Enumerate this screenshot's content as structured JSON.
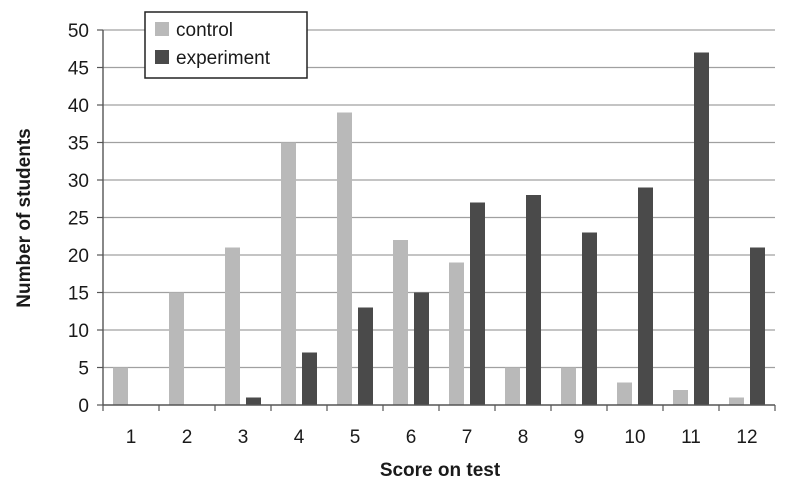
{
  "chart_data": {
    "type": "bar",
    "categories": [
      "1",
      "2",
      "3",
      "4",
      "5",
      "6",
      "7",
      "8",
      "9",
      "10",
      "11",
      "12"
    ],
    "series": [
      {
        "name": "control",
        "color": "#b9b9b9",
        "values": [
          5,
          15,
          21,
          35,
          39,
          22,
          19,
          5,
          5,
          3,
          2,
          1
        ]
      },
      {
        "name": "experiment",
        "color": "#4a4a4a",
        "values": [
          0,
          0,
          1,
          7,
          13,
          15,
          27,
          28,
          23,
          29,
          47,
          21
        ]
      }
    ],
    "xlabel": "Score on test",
    "ylabel": "Number of students",
    "ylim": [
      0,
      50
    ],
    "yticks": [
      0,
      5,
      10,
      15,
      20,
      25,
      30,
      35,
      40,
      45,
      50
    ],
    "grid": true,
    "legend_position": "top-left"
  }
}
